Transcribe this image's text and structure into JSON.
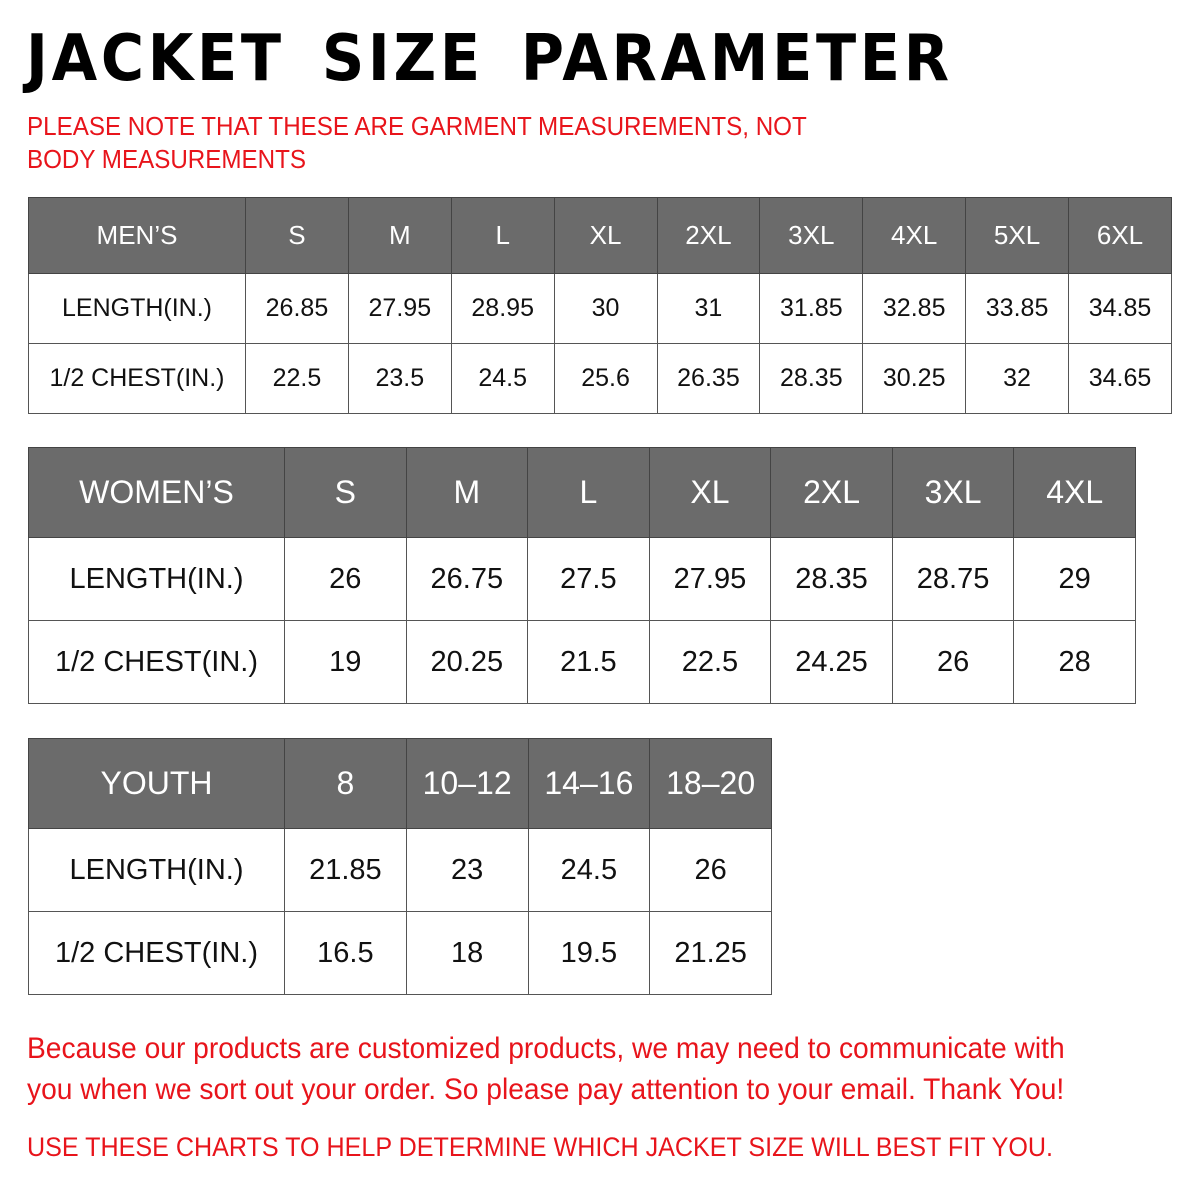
{
  "title": "JACKET SIZE PARAMETER",
  "note": "PLEASE NOTE THAT THESE ARE GARMENT MEASUREMENTS, NOT BODY MEASUREMENTS",
  "colors": {
    "header_bg": "#6b6b6b",
    "accent_red": "#e8141b"
  },
  "tables": {
    "men": {
      "header": [
        "MEN’S",
        "S",
        "M",
        "L",
        "XL",
        "2XL",
        "3XL",
        "4XL",
        "5XL",
        "6XL"
      ],
      "rows": [
        [
          "LENGTH(IN.)",
          "26.85",
          "27.95",
          "28.95",
          "30",
          "31",
          "31.85",
          "32.85",
          "33.85",
          "34.85"
        ],
        [
          "1/2 CHEST(IN.)",
          "22.5",
          "23.5",
          "24.5",
          "25.6",
          "26.35",
          "28.35",
          "30.25",
          "32",
          "34.65"
        ]
      ]
    },
    "women": {
      "header": [
        "WOMEN’S",
        "S",
        "M",
        "L",
        "XL",
        "2XL",
        "3XL",
        "4XL"
      ],
      "rows": [
        [
          "LENGTH(IN.)",
          "26",
          "26.75",
          "27.5",
          "27.95",
          "28.35",
          "28.75",
          "29"
        ],
        [
          "1/2 CHEST(IN.)",
          "19",
          "20.25",
          "21.5",
          "22.5",
          "24.25",
          "26",
          "28"
        ]
      ]
    },
    "youth": {
      "header": [
        "YOUTH",
        "8",
        "10–12",
        "14–16",
        "18–20"
      ],
      "rows": [
        [
          "LENGTH(IN.)",
          "21.85",
          "23",
          "24.5",
          "26"
        ],
        [
          "1/2 CHEST(IN.)",
          "16.5",
          "18",
          "19.5",
          "21.25"
        ]
      ]
    }
  },
  "paragraph": "Because our products are customized products, we may need to communicate with you when we sort out your order. So please pay attention to your email. Thank You!",
  "footer": "USE THESE CHARTS TO HELP DETERMINE WHICH JACKET SIZE WILL BEST FIT YOU."
}
